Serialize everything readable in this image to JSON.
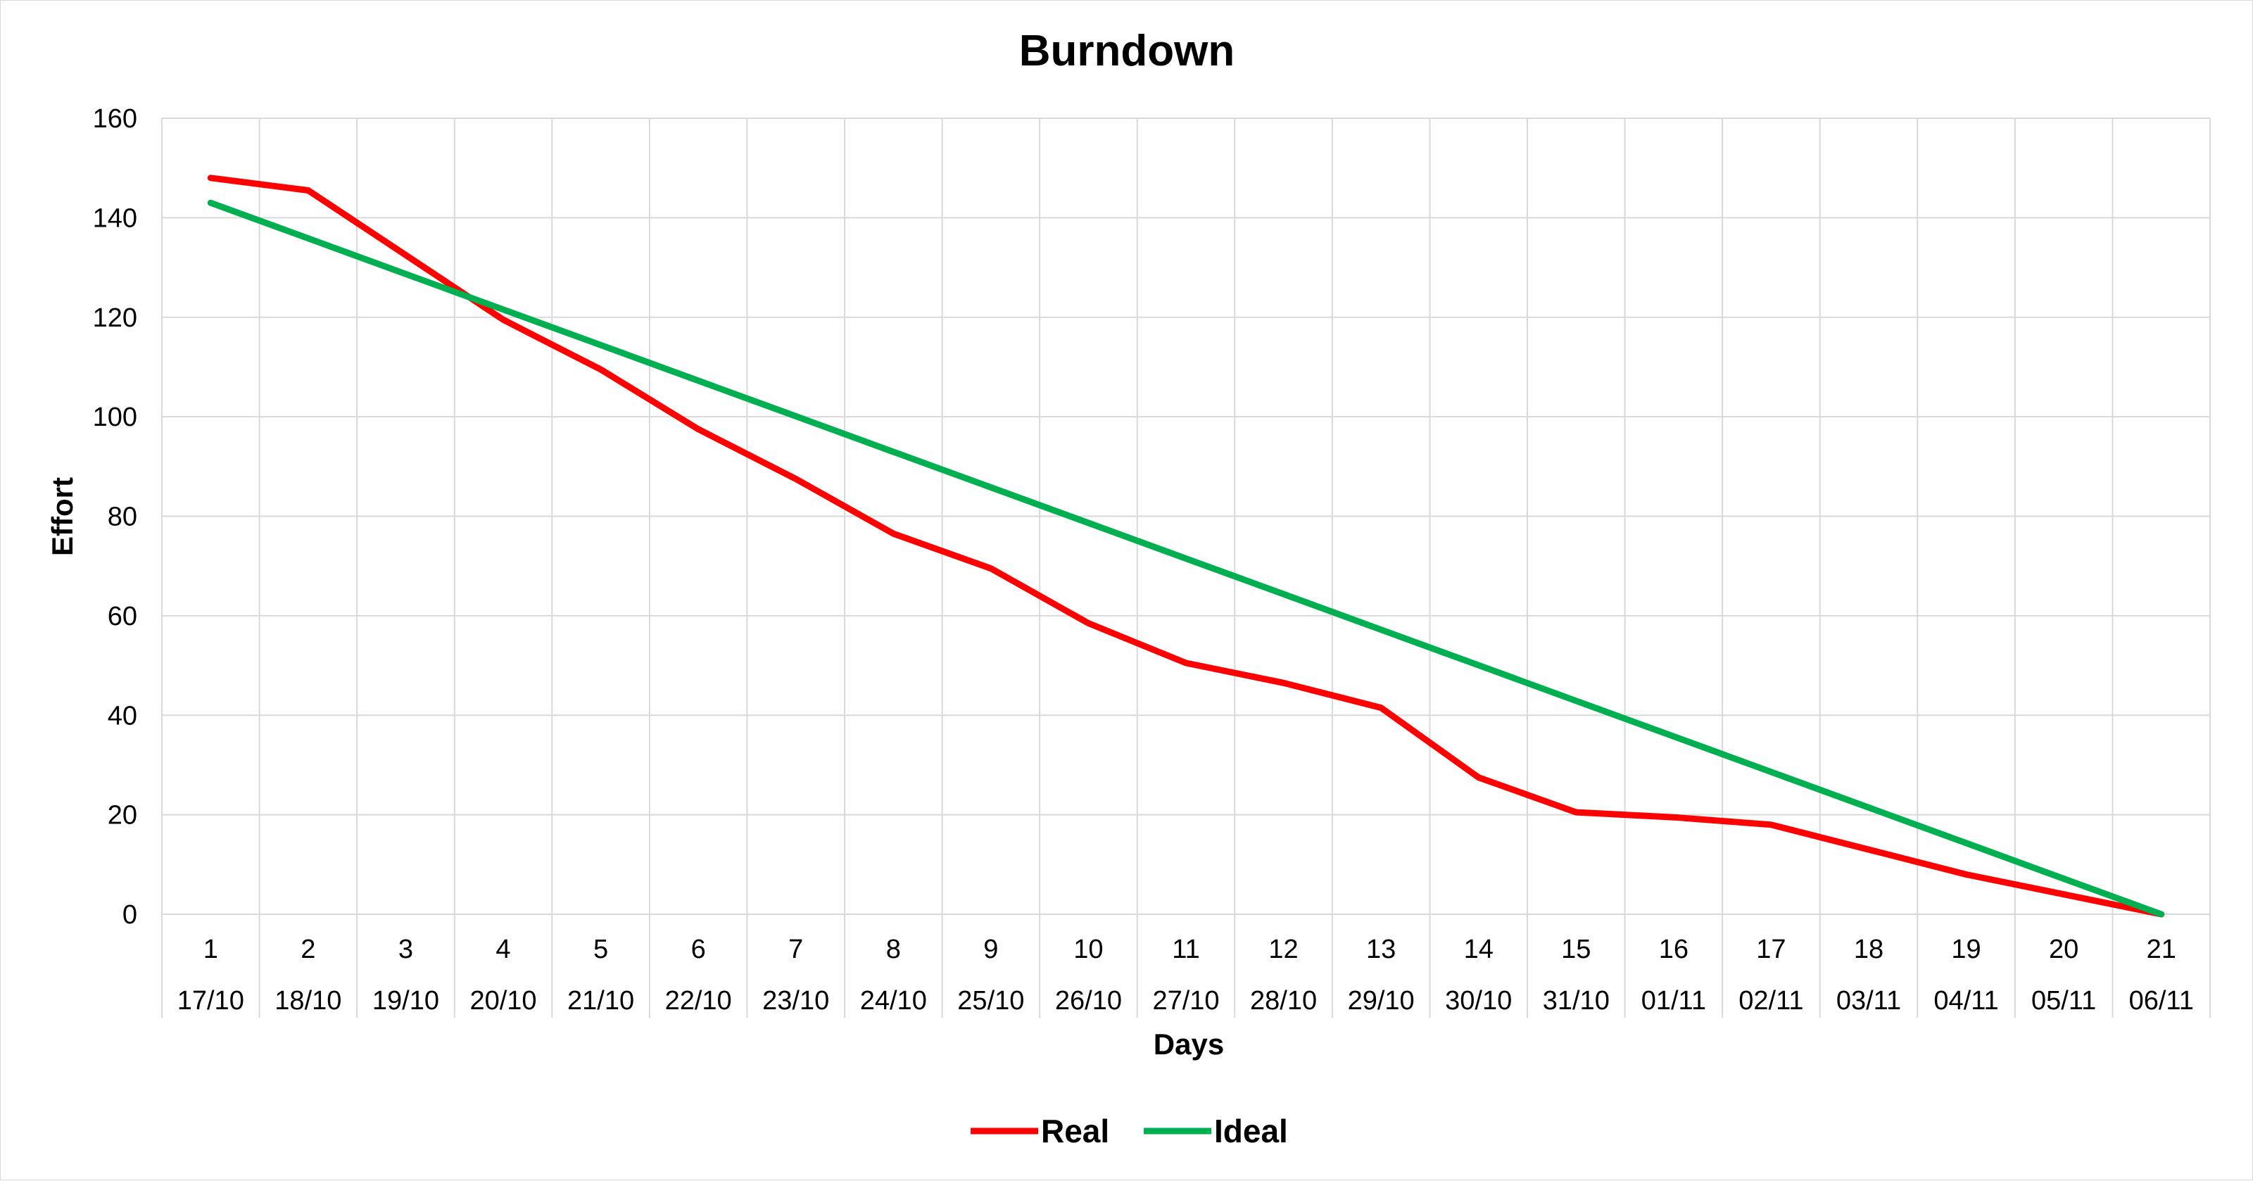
{
  "chart_data": {
    "type": "line",
    "title": "Burndown",
    "xlabel": "Days",
    "ylabel": "Effort",
    "ylim": [
      0,
      160
    ],
    "yticks": [
      0,
      20,
      40,
      60,
      80,
      100,
      120,
      140,
      160
    ],
    "x": [
      "1",
      "2",
      "3",
      "4",
      "5",
      "6",
      "7",
      "8",
      "9",
      "10",
      "11",
      "12",
      "13",
      "14",
      "15",
      "16",
      "17",
      "18",
      "19",
      "20",
      "21"
    ],
    "dates": [
      "17/10",
      "18/10",
      "19/10",
      "20/10",
      "21/10",
      "22/10",
      "23/10",
      "24/10",
      "25/10",
      "26/10",
      "27/10",
      "28/10",
      "29/10",
      "30/10",
      "31/10",
      "01/11",
      "02/11",
      "03/11",
      "04/11",
      "05/11",
      "06/11"
    ],
    "grid": true,
    "legend_position": "bottom",
    "series": [
      {
        "name": "Real",
        "color": "#ff0000",
        "values": [
          148,
          145.5,
          132.5,
          119.5,
          109.5,
          97.5,
          87.5,
          76.5,
          69.5,
          58.5,
          50.5,
          46.5,
          41.5,
          27.5,
          20.5,
          19.5,
          18,
          13,
          8,
          4,
          0
        ]
      },
      {
        "name": "Ideal",
        "color": "#00b050",
        "values": [
          143,
          135.85,
          128.7,
          121.55,
          114.4,
          107.25,
          100.1,
          92.95,
          85.8,
          78.65,
          71.5,
          64.35,
          57.2,
          50.05,
          42.9,
          35.75,
          28.6,
          21.45,
          14.3,
          7.15,
          0
        ]
      }
    ]
  }
}
